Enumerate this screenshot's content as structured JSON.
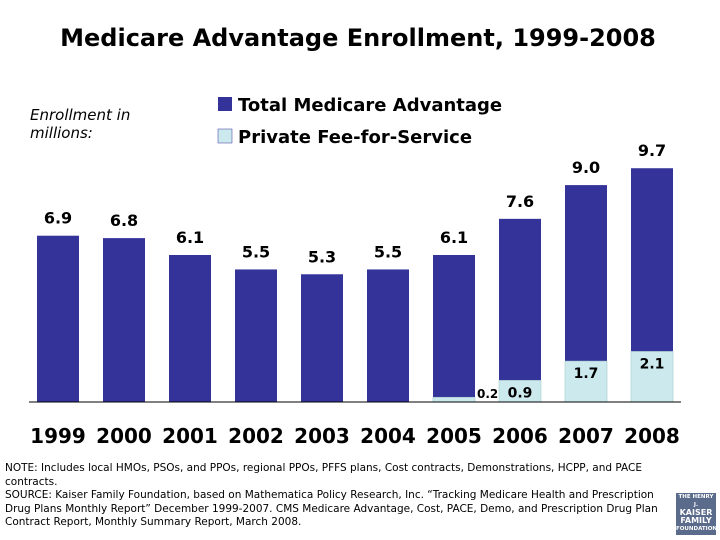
{
  "chart_data": {
    "type": "bar",
    "title": "Medicare Advantage Enrollment, 1999-2008",
    "subtitle": "Enrollment in millions:",
    "categories": [
      "1999",
      "2000",
      "2001",
      "2002",
      "2003",
      "2004",
      "2005",
      "2006",
      "2007",
      "2008"
    ],
    "series": [
      {
        "name": "Total Medicare Advantage",
        "color": "#333399",
        "values": [
          6.9,
          6.8,
          6.1,
          5.5,
          5.3,
          5.5,
          6.1,
          7.6,
          9.0,
          9.7
        ],
        "value_labels": [
          "6.9",
          "6.8",
          "6.1",
          "5.5",
          "5.3",
          "5.5",
          "6.1",
          "7.6",
          "9.0",
          "9.7"
        ]
      },
      {
        "name": "Private Fee-for-Service",
        "color": "#cceaee",
        "values": [
          null,
          null,
          null,
          null,
          null,
          null,
          0.2,
          0.9,
          1.7,
          2.1
        ],
        "value_labels": [
          null,
          null,
          null,
          null,
          null,
          null,
          "0.2",
          "0.9",
          "1.7",
          "2.1"
        ]
      }
    ],
    "ylim": [
      0,
      10
    ],
    "note": "NOTE: Includes local HMOs, PSOs, and PPOs, regional PPOs, PFFS plans, Cost contracts, Demonstrations, HCPP, and PACE contracts.",
    "source": "SOURCE:  Kaiser Family Foundation, based on Mathematica Policy Research, Inc. “Tracking Medicare Health and Prescription Drug Plans Monthly Report” December 1999-2007. CMS Medicare Advantage, Cost, PACE, Demo, and Prescription Drug Plan Contract Report, Monthly Summary Report, March 2008.",
    "logo": [
      "THE HENRY J.",
      "KAISER",
      "FAMILY",
      "FOUNDATION"
    ]
  }
}
